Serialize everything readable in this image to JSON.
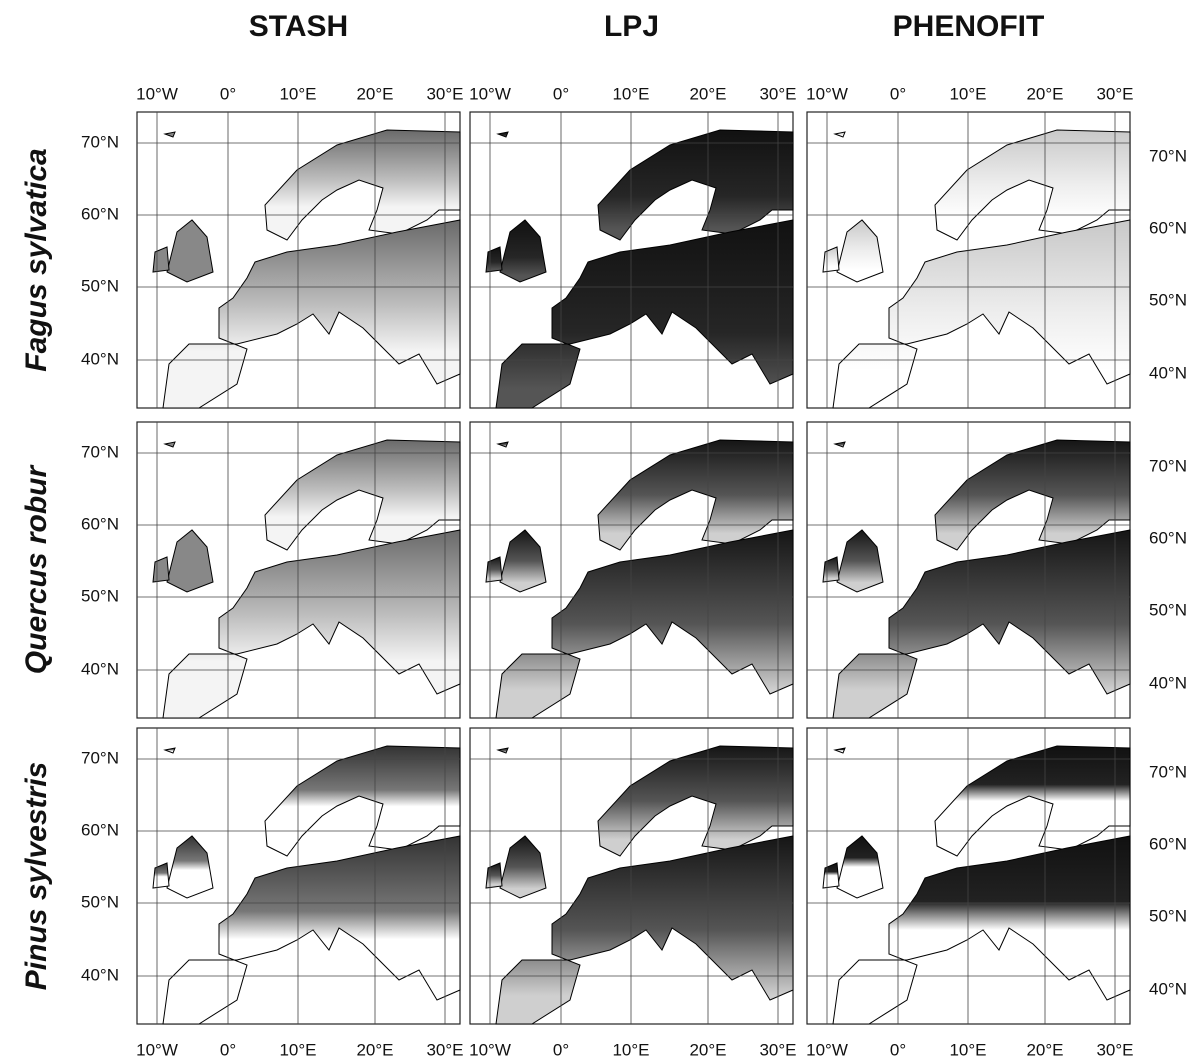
{
  "columns": [
    "STASH",
    "LPJ",
    "PHENOFIT"
  ],
  "rows": [
    "Fagus sylvatica",
    "Quercus robur",
    "Pinus sylvestris"
  ],
  "longitude_labels": [
    "10°W",
    "0°",
    "10°E",
    "20°E",
    "30°E"
  ],
  "latitude_labels": [
    "70°N",
    "60°N",
    "50°N",
    "40°N"
  ]
}
